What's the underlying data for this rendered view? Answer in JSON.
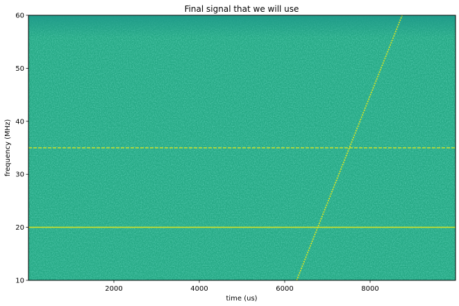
{
  "chart_data": {
    "type": "heatmap",
    "title": "Final signal that we will use",
    "xlabel": "time (us)",
    "ylabel": "frequency (MHz)",
    "xlim": [
      0,
      10000
    ],
    "ylim": [
      10,
      60
    ],
    "x_ticks": [
      2000,
      4000,
      6000,
      8000
    ],
    "y_ticks": [
      10,
      20,
      30,
      40,
      50,
      60
    ],
    "colormap": "viridis",
    "background_color": "#26a985",
    "signal_color": "#cfe12a",
    "constant_tones": [
      {
        "frequency": 20,
        "style": "solid"
      },
      {
        "frequency": 35,
        "style": "dashed"
      }
    ],
    "chirp": {
      "style": "dotted",
      "points": [
        {
          "x": 6280,
          "y": 10
        },
        {
          "x": 8750,
          "y": 60
        }
      ]
    }
  }
}
